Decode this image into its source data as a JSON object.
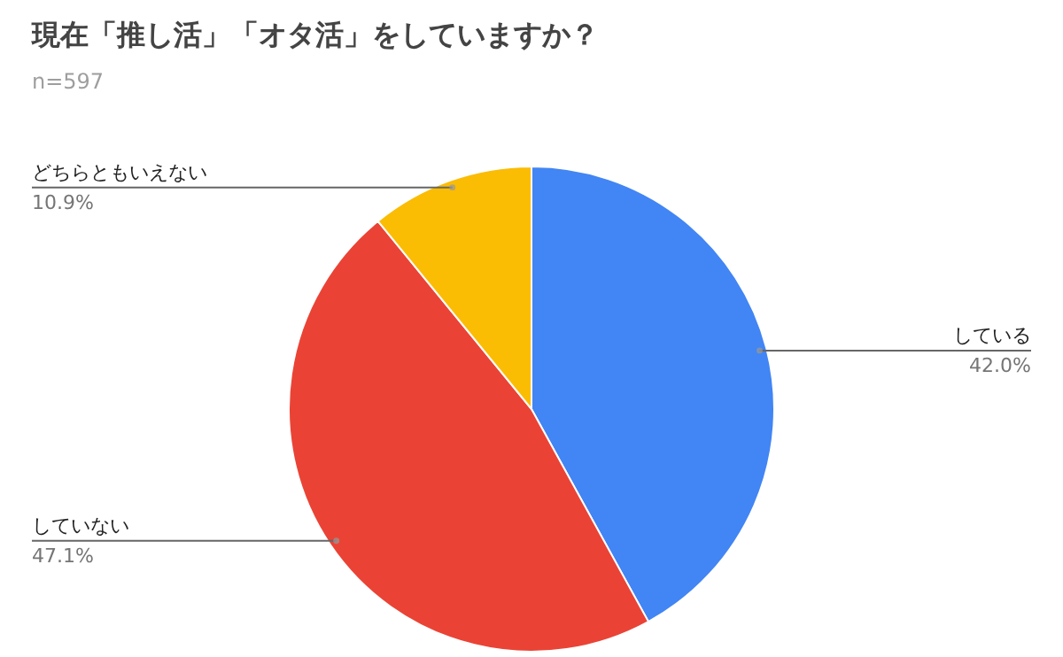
{
  "chart_data": {
    "type": "pie",
    "title": "現在「推し活」「オタ活」をしていますか？",
    "subtitle": "n=597",
    "categories": [
      "している",
      "していない",
      "どちらともいえない"
    ],
    "values": [
      42.0,
      47.1,
      10.9
    ],
    "colors": [
      "#4285f4",
      "#ea4335",
      "#fbbc04"
    ],
    "value_labels": [
      "42.0%",
      "47.1%",
      "10.9%"
    ]
  }
}
